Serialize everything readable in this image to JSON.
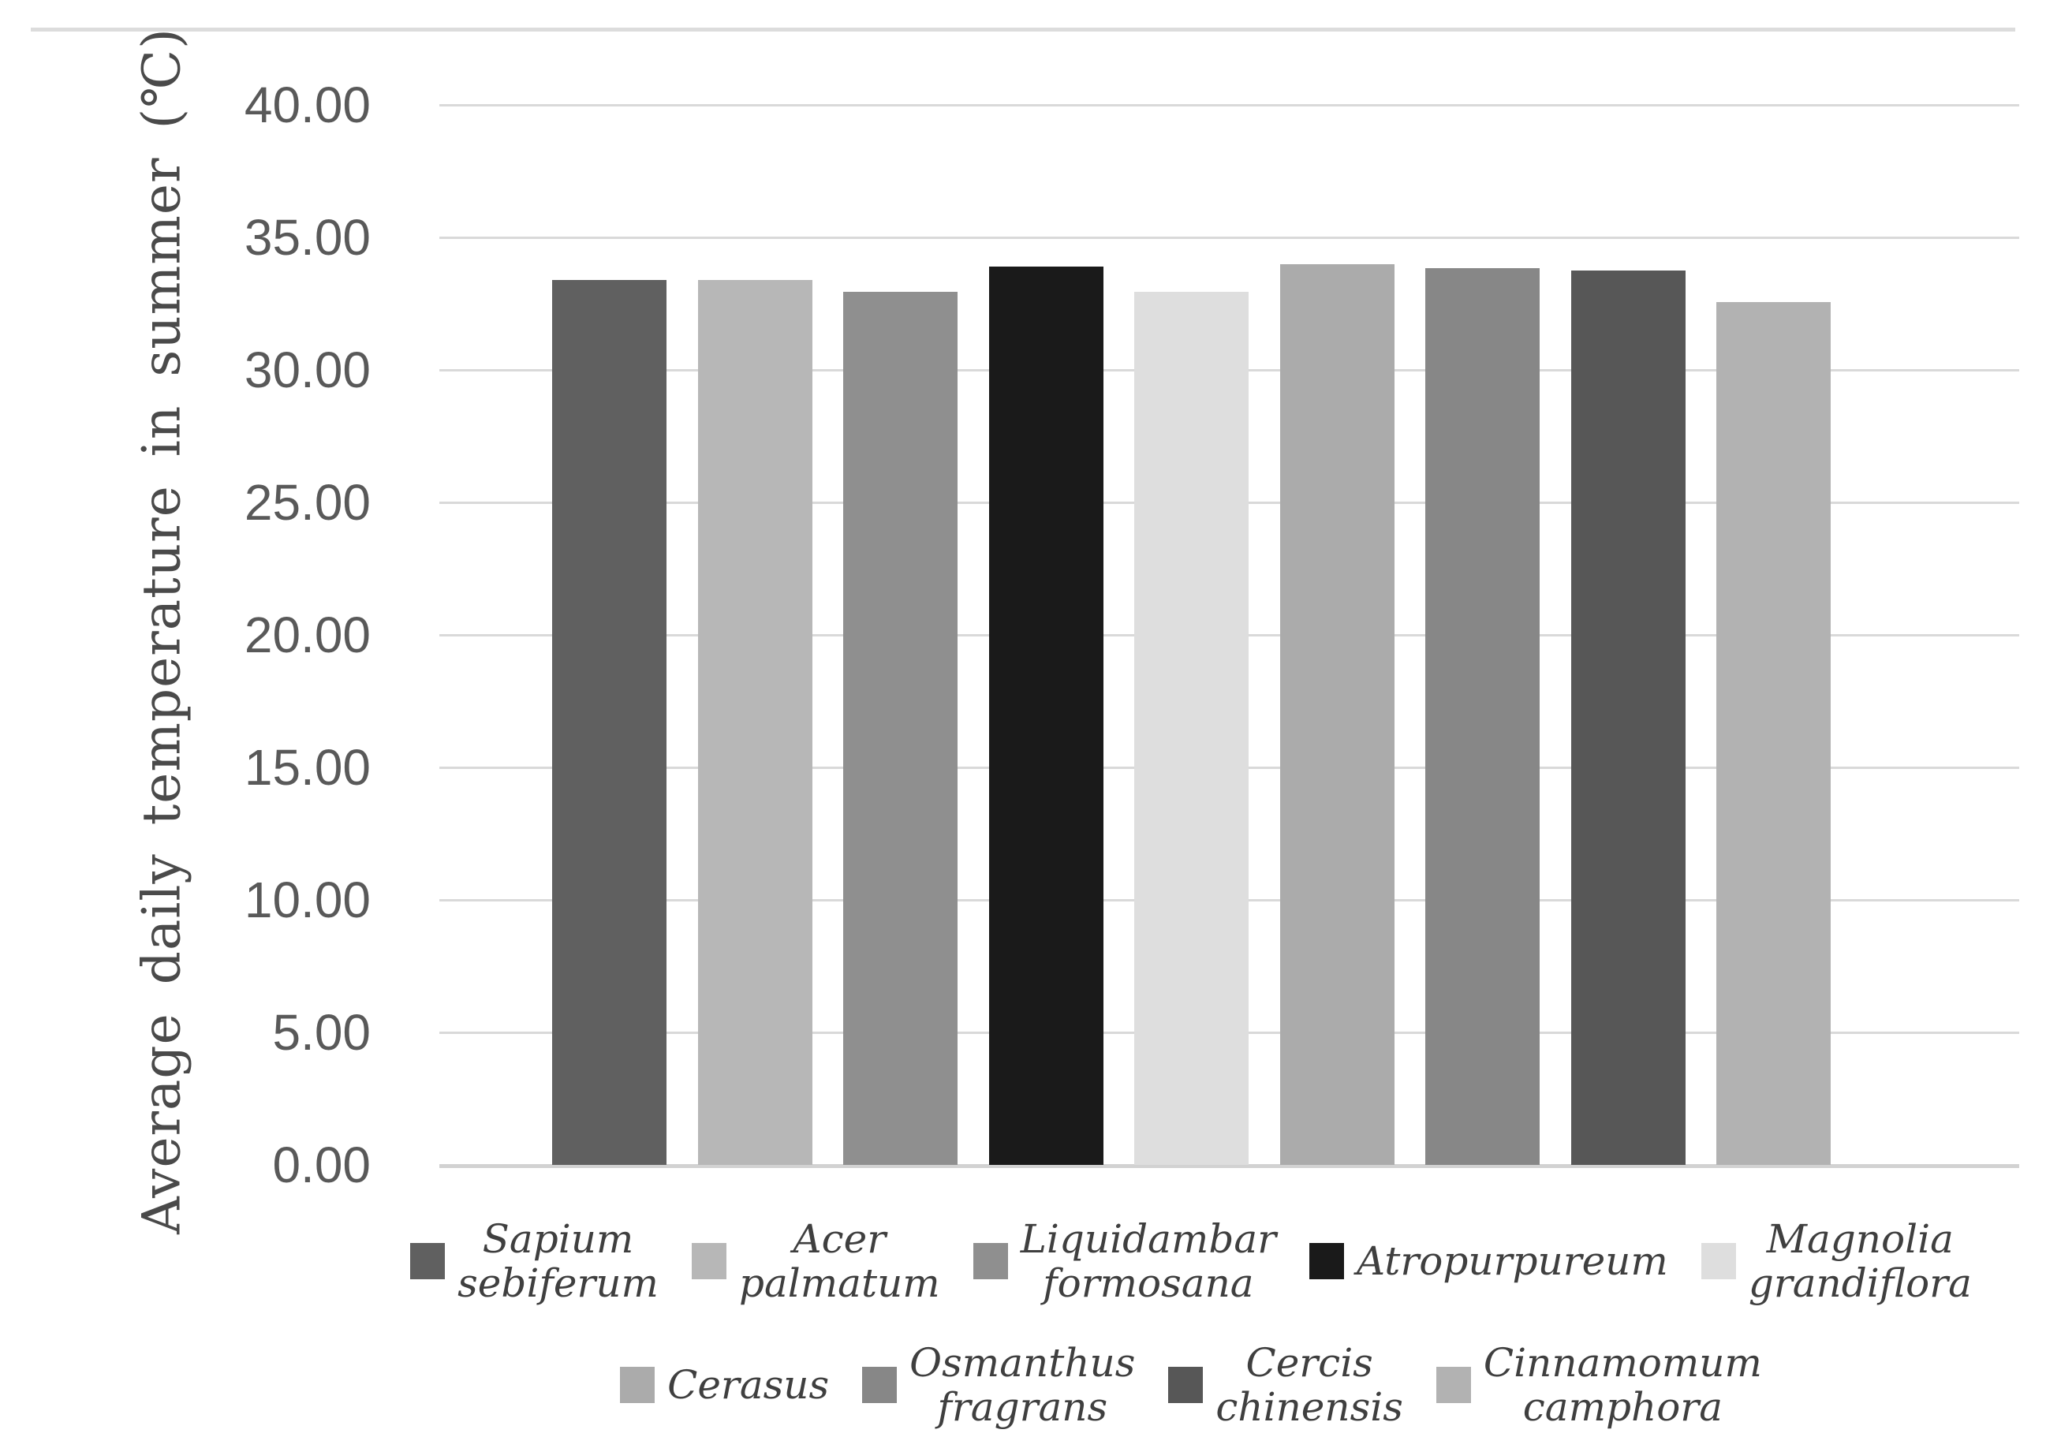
{
  "chart_data": {
    "type": "bar",
    "title": "",
    "xlabel": "",
    "ylabel": "Average daily temperature in summer (℃)",
    "ylim": [
      0,
      40
    ],
    "ytick_step": 5,
    "yticks": [
      "0.00",
      "5.00",
      "10.00",
      "15.00",
      "20.00",
      "25.00",
      "30.00",
      "35.00",
      "40.00"
    ],
    "grid": "horizontal",
    "x_axis_labels": "none",
    "legend_position": "bottom-two-rows",
    "series": [
      {
        "name": "Sapium sebiferum",
        "name_lines": [
          "Sapium",
          "sebiferum"
        ],
        "value": 33.4,
        "color": "#606060",
        "legend_row": 1
      },
      {
        "name": "Acer palmatum",
        "name_lines": [
          "Acer",
          "palmatum"
        ],
        "value": 33.4,
        "color": "#b7b7b7",
        "legend_row": 1
      },
      {
        "name": "Liquidambar formosana",
        "name_lines": [
          "Liquidambar",
          "formosana"
        ],
        "value": 32.95,
        "color": "#8f8f8f",
        "legend_row": 1
      },
      {
        "name": "Atropurpureum",
        "name_lines": [
          "Atropurpureum"
        ],
        "value": 33.9,
        "color": "#1a1a1a",
        "legend_row": 1
      },
      {
        "name": "Magnolia grandiflora",
        "name_lines": [
          "Magnolia",
          "grandiflora"
        ],
        "value": 32.95,
        "color": "#dedede",
        "legend_row": 1
      },
      {
        "name": "Cerasus",
        "name_lines": [
          "Cerasus"
        ],
        "value": 34.0,
        "color": "#ababab",
        "legend_row": 2
      },
      {
        "name": "Osmanthus fragrans",
        "name_lines": [
          "Osmanthus",
          "fragrans"
        ],
        "value": 33.85,
        "color": "#878787",
        "legend_row": 2
      },
      {
        "name": "Cercis chinensis",
        "name_lines": [
          "Cercis",
          "chinensis"
        ],
        "value": 33.75,
        "color": "#575757",
        "legend_row": 2
      },
      {
        "name": "Cinnamomum camphora",
        "name_lines": [
          "Cinnamomum",
          "camphora"
        ],
        "value": 32.55,
        "color": "#b2b2b2",
        "legend_row": 2
      }
    ],
    "colors": {
      "gridline": "#d9d9d9",
      "zero_axis_line": "#d2d2d2",
      "top_border": "#dcdcdc",
      "tick_label": "#595959",
      "axis_title": "#4a4a4a",
      "legend_text": "#3f3f3f",
      "background": "#ffffff"
    }
  }
}
